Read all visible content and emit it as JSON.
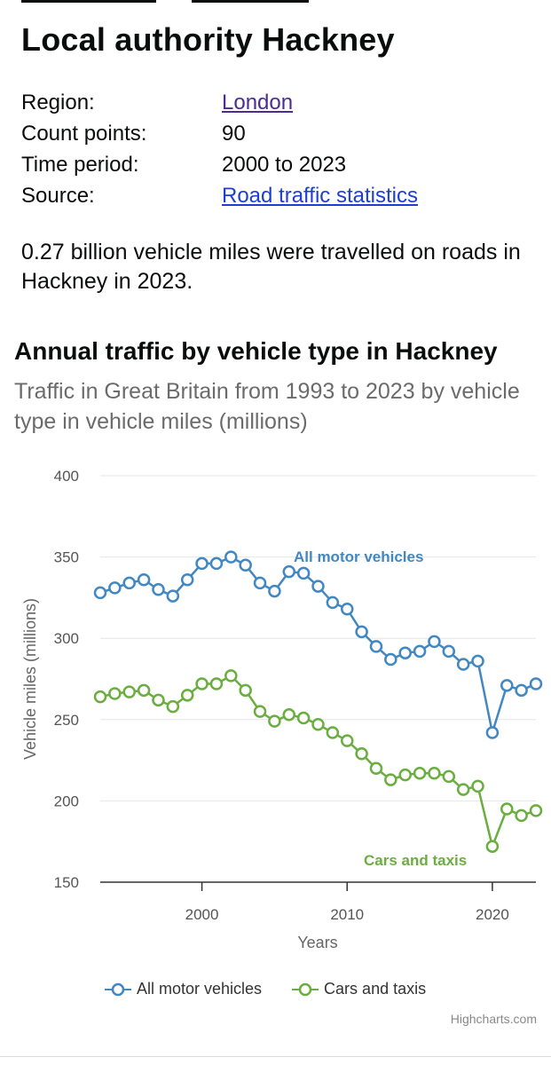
{
  "page": {
    "title": "Local authority Hackney",
    "meta": [
      {
        "label": "Region:",
        "value": "London",
        "link": true,
        "visited": true
      },
      {
        "label": "Count points:",
        "value": "90",
        "link": false
      },
      {
        "label": "Time period:",
        "value": "2000 to 2023",
        "link": false
      },
      {
        "label": "Source:",
        "value": "Road traffic statistics",
        "link": true,
        "visited": false
      }
    ],
    "summary": "0.27 billion vehicle miles were travelled on roads in Hackney in 2023.",
    "chart_title": "Annual traffic by vehicle type in Hackney",
    "chart_subtitle": "Traffic in Great Britain from 1993 to 2023 by vehicle type in vehicle miles (millions)",
    "credit": "Highcharts.com",
    "colors": {
      "all_motor": "#4188c2",
      "cars": "#6aae3f",
      "link": "#1d3fd0",
      "visited": "#4c2c92"
    }
  },
  "chart_data": {
    "type": "line",
    "xlabel": "Years",
    "ylabel": "Vehicle miles (millions)",
    "xlim": [
      1993,
      2023
    ],
    "ylim": [
      150,
      400
    ],
    "xticks": [
      2000,
      2010,
      2020
    ],
    "yticks": [
      150,
      200,
      250,
      300,
      350,
      400
    ],
    "grid": "horizontal",
    "legend": "bottom",
    "x": [
      1993,
      1994,
      1995,
      1996,
      1997,
      1998,
      1999,
      2000,
      2001,
      2002,
      2003,
      2004,
      2005,
      2006,
      2007,
      2008,
      2009,
      2010,
      2011,
      2012,
      2013,
      2014,
      2015,
      2016,
      2017,
      2018,
      2019,
      2020,
      2021,
      2022,
      2023
    ],
    "series": [
      {
        "name": "All motor vehicles",
        "color": "#4188c2",
        "values": [
          328,
          331,
          334,
          336,
          330,
          326,
          336,
          346,
          346,
          350,
          345,
          334,
          329,
          341,
          340,
          332,
          322,
          318,
          304,
          295,
          287,
          291,
          292,
          298,
          292,
          284,
          286,
          242,
          271,
          268,
          272
        ]
      },
      {
        "name": "Cars and taxis",
        "color": "#6aae3f",
        "values": [
          264,
          266,
          267,
          268,
          262,
          258,
          265,
          272,
          272,
          277,
          268,
          255,
          249,
          253,
          251,
          247,
          242,
          237,
          229,
          220,
          213,
          216,
          217,
          217,
          215,
          207,
          209,
          172,
          195,
          191,
          194
        ]
      }
    ],
    "annotations": [
      "All motor vehicles",
      "Cars and taxis"
    ]
  }
}
